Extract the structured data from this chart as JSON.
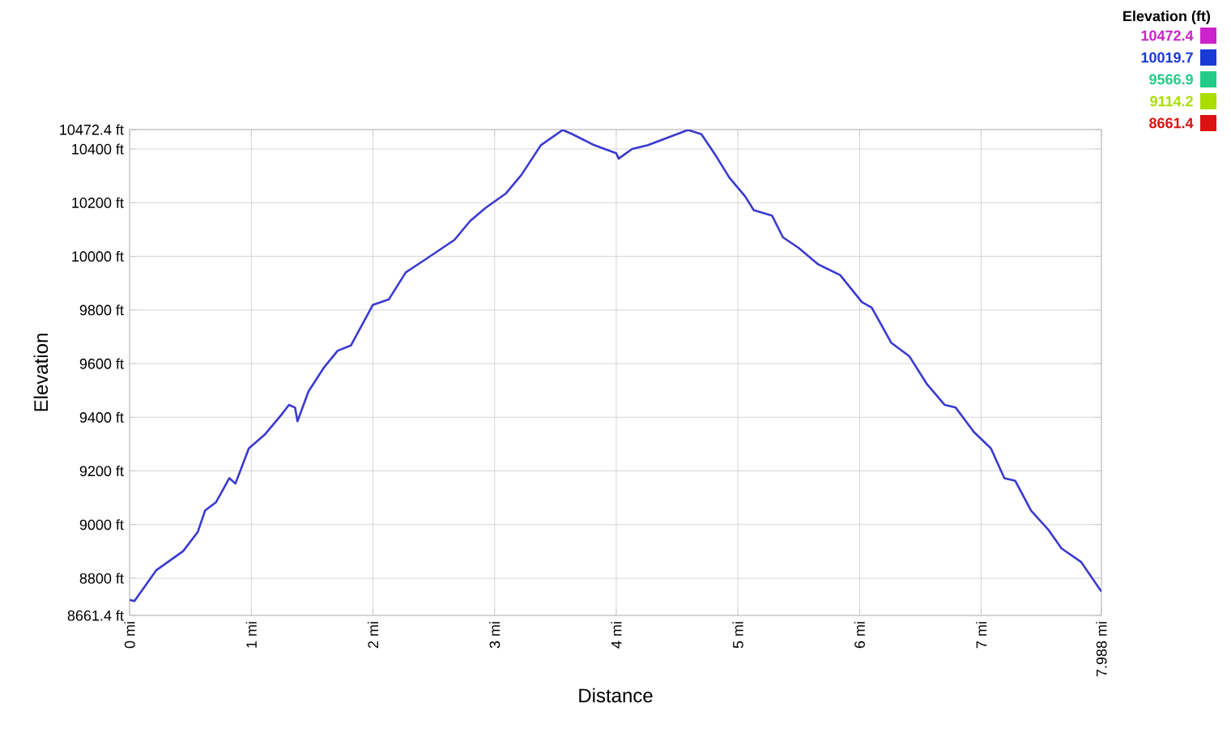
{
  "chart_data": {
    "type": "line",
    "xlabel": "Distance",
    "ylabel": "Elevation",
    "clabel": "Elevation (ft)",
    "xlim": [
      0,
      7.988
    ],
    "ylim": [
      8661.4,
      10472.4
    ],
    "xticks": [
      {
        "value": 0,
        "label": "0 mi"
      },
      {
        "value": 1,
        "label": "1 mi"
      },
      {
        "value": 2,
        "label": "2 mi"
      },
      {
        "value": 3,
        "label": "3 mi"
      },
      {
        "value": 4,
        "label": "4 mi"
      },
      {
        "value": 5,
        "label": "5 mi"
      },
      {
        "value": 6,
        "label": "6 mi"
      },
      {
        "value": 7,
        "label": "7 mi"
      },
      {
        "value": 7.988,
        "label": "7.988 mi"
      }
    ],
    "yticks": [
      {
        "value": 8661.4,
        "label": "8661.4 ft"
      },
      {
        "value": 8800,
        "label": "8800 ft"
      },
      {
        "value": 9000,
        "label": "9000 ft"
      },
      {
        "value": 9200,
        "label": "9200 ft"
      },
      {
        "value": 9400,
        "label": "9400 ft"
      },
      {
        "value": 9600,
        "label": "9600 ft"
      },
      {
        "value": 9800,
        "label": "9800 ft"
      },
      {
        "value": 10000,
        "label": "10000 ft"
      },
      {
        "value": 10200,
        "label": "10200 ft"
      },
      {
        "value": 10400,
        "label": "10400 ft"
      },
      {
        "value": 10472.4,
        "label": "10472.4 ft"
      }
    ],
    "cticks": [
      8661.4,
      9114.2,
      9566.9,
      10019.7,
      10472.4
    ],
    "colors": [
      "#dd1111",
      "#aadd00",
      "#22cc88",
      "#1a3ad6",
      "#cc22cc"
    ],
    "grid": true,
    "line_style": "solid",
    "marker": "none",
    "series": [
      {
        "color": "#3a3ad0",
        "x": [
          0,
          0.04,
          0.22,
          0.44,
          0.56,
          0.62,
          0.71,
          0.82,
          0.87,
          0.98,
          1.11,
          1.24,
          1.31,
          1.36,
          1.38,
          1.47,
          1.6,
          1.71,
          1.82,
          2.0,
          2.13,
          2.27,
          2.44,
          2.67,
          2.8,
          2.93,
          3.09,
          3.22,
          3.38,
          3.56,
          3.64,
          3.82,
          4.0,
          4.02,
          4.13,
          4.26,
          4.44,
          4.59,
          4.7,
          4.82,
          4.93,
          5.06,
          5.13,
          5.28,
          5.37,
          5.5,
          5.66,
          5.84,
          6.02,
          6.1,
          6.26,
          6.41,
          6.55,
          6.7,
          6.79,
          6.94,
          7.08,
          7.19,
          7.28,
          7.41,
          7.55,
          7.66,
          7.82,
          7.988
        ],
        "values": [
          8719,
          8715,
          8830,
          8901,
          8972,
          9052,
          9083,
          9173,
          9153,
          9284,
          9335,
          9405,
          9446,
          9436,
          9385,
          9496,
          9587,
          9648,
          9668,
          9819,
          9839,
          9940,
          9991,
          10061,
          10132,
          10182,
          10233,
          10303,
          10414,
          10471,
          10455,
          10414,
          10384,
          10364,
          10400,
          10414,
          10445,
          10471,
          10455,
          10374,
          10293,
          10223,
          10172,
          10152,
          10071,
          10031,
          9970,
          9930,
          9829,
          9809,
          9678,
          9627,
          9526,
          9446,
          9436,
          9345,
          9284,
          9173,
          9163,
          9052,
          8982,
          8911,
          8861,
          8750
        ]
      }
    ]
  }
}
